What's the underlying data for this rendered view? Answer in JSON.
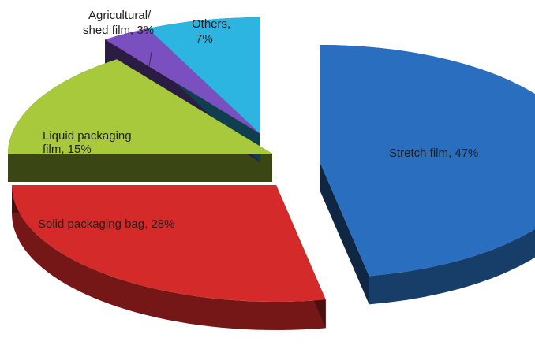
{
  "chart_data": {
    "type": "pie",
    "style": "exploded 3d",
    "title": "",
    "slices": [
      {
        "label": "Stretch film, 47%",
        "value": 47,
        "color": "#2a6fbf"
      },
      {
        "label": "Solid packaging bag, 28%",
        "value": 28,
        "color": "#d42a2a"
      },
      {
        "label": "Liquid packaging film, 15%",
        "lines": [
          "Liquid packaging",
          "film, 15%"
        ],
        "value": 15,
        "color": "#a8c93c"
      },
      {
        "label": "Agricultural/ shed film, 3%",
        "lines": [
          "Agricultural/",
          "shed film, 3%"
        ],
        "value": 3,
        "color": "#7a4fbf"
      },
      {
        "label": "Others, 7%",
        "lines": [
          "Others,",
          "7%"
        ],
        "value": 7,
        "color": "#2bb5e0"
      }
    ]
  }
}
